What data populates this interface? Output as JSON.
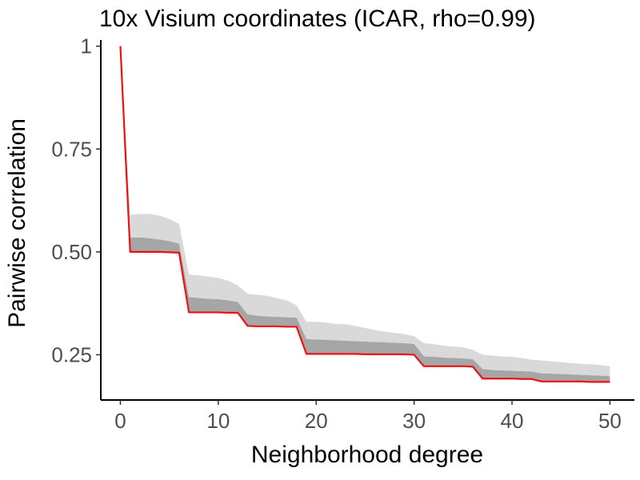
{
  "chart_data": {
    "type": "area",
    "title": "10x Visium coordinates (ICAR, rho=0.99)",
    "xlabel": "Neighborhood degree",
    "ylabel": "Pairwise correlation",
    "xlim": [
      -2,
      52.5
    ],
    "ylim": [
      0.14,
      1.015
    ],
    "x_ticks": [
      0,
      10,
      20,
      30,
      40,
      50
    ],
    "x_tick_labels": [
      "0",
      "10",
      "20",
      "30",
      "40",
      "50"
    ],
    "y_ticks": [
      0.25,
      0.5,
      0.75,
      1.0
    ],
    "y_tick_labels": [
      "0.25",
      "0.50",
      "0.75",
      "1"
    ],
    "grid": false,
    "colors": {
      "line": "#ee1111",
      "band_outer": "#d9d9d9",
      "band_inner": "#a6a6a6"
    },
    "x": [
      0,
      1,
      2,
      3,
      4,
      5,
      6,
      7,
      8,
      9,
      10,
      11,
      12,
      13,
      14,
      15,
      16,
      17,
      18,
      19,
      20,
      21,
      22,
      23,
      24,
      25,
      26,
      27,
      28,
      29,
      30,
      31,
      32,
      33,
      34,
      35,
      36,
      37,
      38,
      39,
      40,
      41,
      42,
      43,
      44,
      45,
      46,
      47,
      48,
      49,
      50
    ],
    "series": [
      {
        "role": "median_line",
        "values": [
          1.0,
          0.5,
          0.5,
          0.5,
          0.5,
          0.499,
          0.498,
          0.353,
          0.353,
          0.353,
          0.353,
          0.352,
          0.352,
          0.32,
          0.319,
          0.319,
          0.319,
          0.318,
          0.318,
          0.252,
          0.252,
          0.252,
          0.252,
          0.252,
          0.252,
          0.251,
          0.251,
          0.251,
          0.251,
          0.251,
          0.25,
          0.222,
          0.222,
          0.222,
          0.222,
          0.222,
          0.221,
          0.192,
          0.192,
          0.192,
          0.192,
          0.191,
          0.191,
          0.185,
          0.185,
          0.185,
          0.185,
          0.185,
          0.184,
          0.184,
          0.184
        ]
      },
      {
        "role": "band_inner_upper",
        "values": [
          1.0,
          0.535,
          0.535,
          0.533,
          0.53,
          0.526,
          0.52,
          0.39,
          0.388,
          0.386,
          0.385,
          0.382,
          0.378,
          0.348,
          0.345,
          0.343,
          0.342,
          0.341,
          0.34,
          0.288,
          0.287,
          0.286,
          0.285,
          0.284,
          0.283,
          0.282,
          0.281,
          0.28,
          0.279,
          0.278,
          0.276,
          0.246,
          0.245,
          0.243,
          0.242,
          0.241,
          0.239,
          0.215,
          0.213,
          0.212,
          0.211,
          0.21,
          0.209,
          0.205,
          0.204,
          0.203,
          0.202,
          0.201,
          0.2,
          0.199,
          0.198
        ]
      },
      {
        "role": "band_outer_upper",
        "values": [
          1.0,
          0.59,
          0.592,
          0.592,
          0.588,
          0.58,
          0.568,
          0.445,
          0.443,
          0.44,
          0.437,
          0.43,
          0.418,
          0.398,
          0.396,
          0.393,
          0.388,
          0.382,
          0.37,
          0.33,
          0.33,
          0.328,
          0.325,
          0.324,
          0.32,
          0.315,
          0.31,
          0.306,
          0.303,
          0.3,
          0.295,
          0.278,
          0.276,
          0.272,
          0.27,
          0.268,
          0.262,
          0.25,
          0.248,
          0.246,
          0.245,
          0.242,
          0.238,
          0.236,
          0.234,
          0.232,
          0.23,
          0.228,
          0.227,
          0.225,
          0.222
        ]
      }
    ]
  }
}
